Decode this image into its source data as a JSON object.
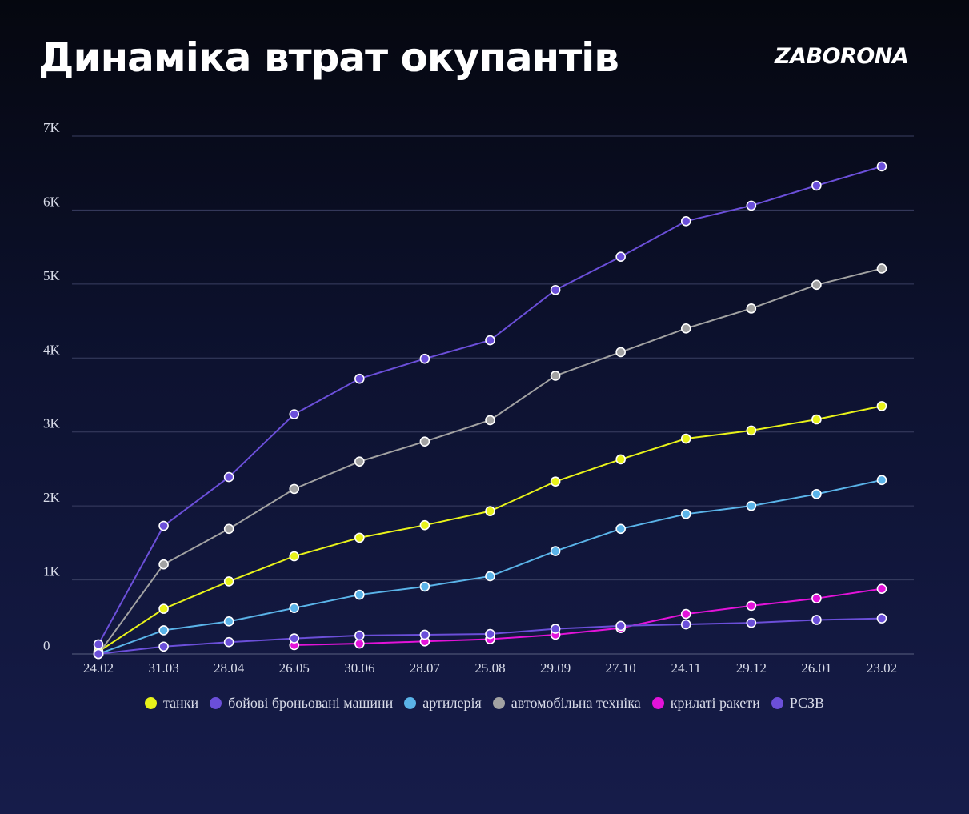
{
  "header": {
    "title": "Динаміка втрат окупантів",
    "logo": "ZABORONA"
  },
  "chart_data": {
    "type": "line",
    "title": "Динаміка втрат окупантів",
    "xlabel": "",
    "ylabel": "",
    "categories": [
      "24.02",
      "31.03",
      "28.04",
      "26.05",
      "30.06",
      "28.07",
      "25.08",
      "29.09",
      "27.10",
      "24.11",
      "29.12",
      "26.01",
      "23.02"
    ],
    "ylim": [
      0,
      7000
    ],
    "yticks": [
      {
        "value": 0,
        "label": "0"
      },
      {
        "value": 1000,
        "label": "1K"
      },
      {
        "value": 2000,
        "label": "2K"
      },
      {
        "value": 3000,
        "label": "3K"
      },
      {
        "value": 4000,
        "label": "4K"
      },
      {
        "value": 5000,
        "label": "5K"
      },
      {
        "value": 6000,
        "label": "6K"
      },
      {
        "value": 7000,
        "label": "7K"
      }
    ],
    "grid": true,
    "legend_position": "bottom",
    "series": [
      {
        "name": "танки",
        "color": "#e8f21a",
        "values": [
          30,
          610,
          980,
          1320,
          1570,
          1740,
          1930,
          2330,
          2630,
          2910,
          3020,
          3170,
          3350
        ]
      },
      {
        "name": "бойові броньовані машини",
        "color": "#6b4fd9",
        "values": [
          130,
          1730,
          2390,
          3240,
          3720,
          3990,
          4240,
          4920,
          5370,
          5850,
          6060,
          6330,
          6590
        ]
      },
      {
        "name": "артилерія",
        "color": "#5ab3e8",
        "values": [
          0,
          320,
          440,
          620,
          800,
          910,
          1050,
          1390,
          1690,
          1890,
          2000,
          2160,
          2350
        ]
      },
      {
        "name": "автомобільна техніка",
        "color": "#a2a2a2",
        "values": [
          0,
          1210,
          1690,
          2230,
          2600,
          2870,
          3160,
          3760,
          4080,
          4400,
          4670,
          4990,
          5210
        ]
      },
      {
        "name": "крилаті ракети",
        "color": "#e313d9",
        "values": [
          null,
          null,
          null,
          120,
          140,
          170,
          200,
          260,
          350,
          540,
          650,
          750,
          880
        ]
      },
      {
        "name": "РСЗВ",
        "color": "#6b4fd9",
        "values": [
          0,
          100,
          160,
          210,
          250,
          260,
          270,
          340,
          380,
          400,
          420,
          460,
          480
        ]
      }
    ]
  }
}
